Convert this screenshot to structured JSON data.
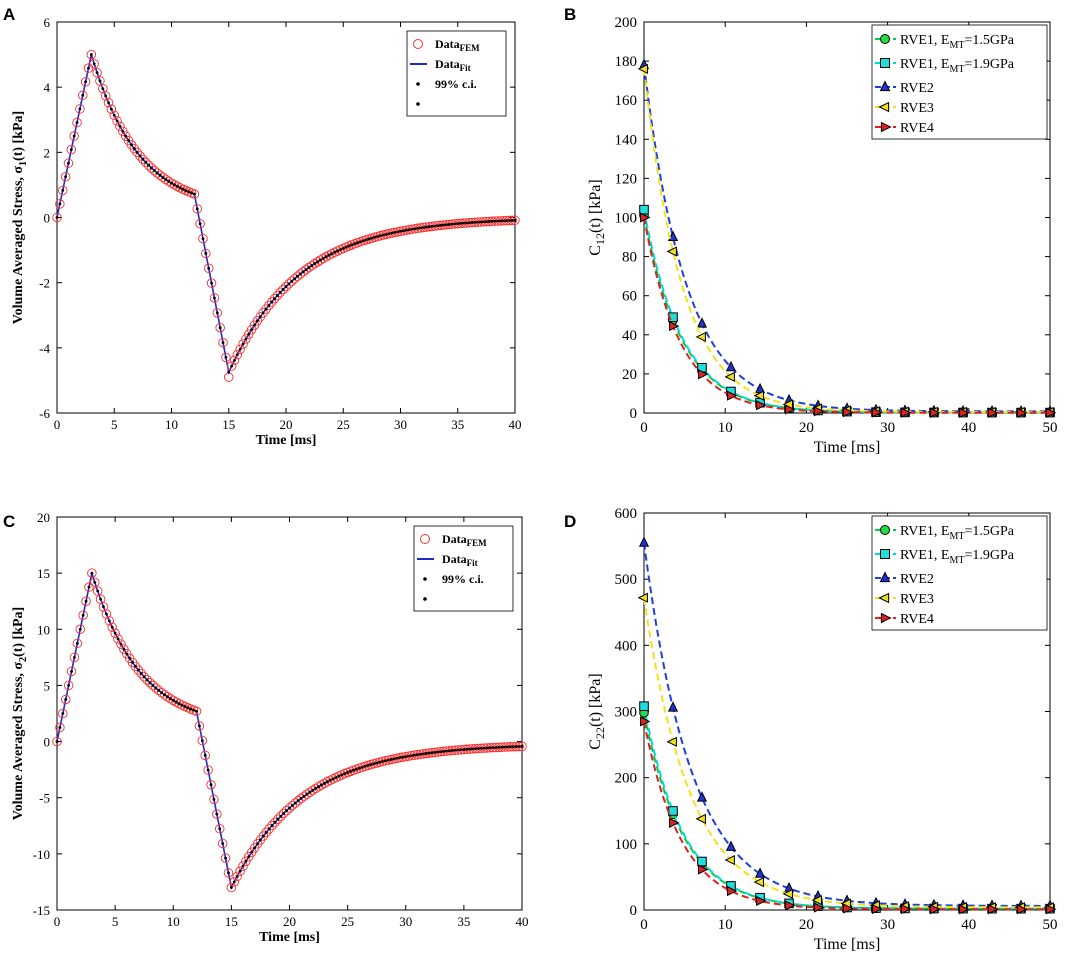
{
  "chart_data": [
    {
      "panel": "A",
      "type": "scatter",
      "xlabel": "Time [ms]",
      "ylabel": "Volume Averaged Stress, σ1(t) [kPa]",
      "ylabel_main": "Volume Averaged Stress, σ",
      "ylabel_sub": "1",
      "ylabel_tail": "(t) [kPa]",
      "xlim": [
        0,
        40
      ],
      "ylim": [
        -6,
        6
      ],
      "xticks": [
        0,
        5,
        10,
        15,
        20,
        25,
        30,
        35,
        40
      ],
      "yticks": [
        -6,
        -4,
        -2,
        0,
        2,
        4,
        6
      ],
      "piecewise": {
        "t_peak": 3,
        "peak": 5.0,
        "t_unload": 12,
        "unload_value": 0.72,
        "t_min": 15,
        "min": -4.75,
        "fem_min": -4.9,
        "t_end": 40,
        "end_value": 0.0
      },
      "legend": [
        {
          "main": "Data",
          "sub": "FEM",
          "marker": "circle-red"
        },
        {
          "main": "Data",
          "sub": "Fit",
          "marker": "line-blue"
        },
        {
          "main": "99% c.i.",
          "sub": "",
          "marker": "dot-black"
        },
        {
          "main": "",
          "sub": "",
          "marker": "dot-black"
        }
      ]
    },
    {
      "panel": "B",
      "type": "line",
      "xlabel": "Time [ms]",
      "ylabel": "C12(t) [kPa]",
      "ylabel_main": "C",
      "ylabel_sub": "12",
      "ylabel_tail": "(t) [kPa]",
      "xlim": [
        0,
        50
      ],
      "ylim": [
        0,
        200
      ],
      "xticks": [
        0,
        10,
        20,
        30,
        40,
        50
      ],
      "yticks": [
        0,
        20,
        40,
        60,
        80,
        100,
        120,
        140,
        160,
        180,
        200
      ],
      "x": [
        0,
        3.57,
        7.14,
        10.71,
        14.29,
        17.86,
        21.43,
        25,
        28.57,
        32.14,
        35.71,
        39.29,
        42.86,
        46.43,
        50
      ],
      "series": [
        {
          "name": "RVE1, EMT=1.5GPa",
          "label_main": "RVE1, E",
          "label_sub": "MT",
          "label_tail": "=1.5GPa",
          "color": "#00cc44",
          "fill": "#22dd44",
          "marker": "circle",
          "start": 101,
          "tau": 4.72,
          "floor": 0.2
        },
        {
          "name": "RVE1, EMT=1.9GPa",
          "label_main": "RVE1, E",
          "label_sub": "MT",
          "label_tail": "=1.9GPa",
          "color": "#00d8d8",
          "fill": "#22dddd",
          "marker": "square",
          "start": 104,
          "tau": 4.73,
          "floor": 0.2
        },
        {
          "name": "RVE2",
          "label_main": "RVE2",
          "label_sub": "",
          "label_tail": "",
          "color": "#1f3fdd",
          "fill": "#2233cc",
          "marker": "triangle-up",
          "start": 178,
          "tau": 5.2,
          "floor": 0.8
        },
        {
          "name": "RVE3",
          "label_main": "RVE3",
          "label_sub": "",
          "label_tail": "",
          "color": "#f2e21a",
          "fill": "#f0e020",
          "marker": "triangle-left",
          "start": 176,
          "tau": 4.7,
          "floor": 0.5
        },
        {
          "name": "RVE4",
          "label_main": "RVE4",
          "label_sub": "",
          "label_tail": "",
          "color": "#dd2222",
          "fill": "#dd2222",
          "marker": "triangle-right",
          "start": 100,
          "tau": 4.4,
          "floor": 0.1
        }
      ]
    },
    {
      "panel": "C",
      "type": "scatter",
      "xlabel": "Time [ms]",
      "ylabel": "Volume Averaged Stress, σ2(t) [kPa]",
      "ylabel_main": "Volume Averaged Stress, σ",
      "ylabel_sub": "2",
      "ylabel_tail": "(t) [kPa]",
      "xlim": [
        0,
        40
      ],
      "ylim": [
        -15,
        20
      ],
      "xticks": [
        0,
        5,
        10,
        15,
        20,
        25,
        30,
        35,
        40
      ],
      "yticks": [
        -15,
        -10,
        -5,
        0,
        5,
        10,
        15,
        20
      ],
      "piecewise": {
        "t_peak": 3,
        "peak": 15.0,
        "t_unload": 12,
        "unload_value": 2.7,
        "t_min": 15,
        "min": -13.0,
        "fem_min": -13.0,
        "t_end": 40,
        "end_value": -0.2
      },
      "legend": [
        {
          "main": "Data",
          "sub": "FEM",
          "marker": "circle-red"
        },
        {
          "main": "Data",
          "sub": "Fit",
          "marker": "line-blue"
        },
        {
          "main": "99% c.i.",
          "sub": "",
          "marker": "dot-black"
        },
        {
          "main": "",
          "sub": "",
          "marker": "dot-black"
        }
      ]
    },
    {
      "panel": "D",
      "type": "line",
      "xlabel": "Time [ms]",
      "ylabel": "C22(t) [kPa]",
      "ylabel_main": "C",
      "ylabel_sub": "22",
      "ylabel_tail": "(t) [kPa]",
      "xlim": [
        0,
        50
      ],
      "ylim": [
        0,
        600
      ],
      "xticks": [
        0,
        10,
        20,
        30,
        40,
        50
      ],
      "yticks": [
        0,
        100,
        200,
        300,
        400,
        500,
        600
      ],
      "x": [
        0,
        3.57,
        7.14,
        10.71,
        14.29,
        17.86,
        21.43,
        25,
        28.57,
        32.14,
        35.71,
        39.29,
        42.86,
        46.43,
        50
      ],
      "series": [
        {
          "name": "RVE1, EMT=1.5GPa",
          "label_main": "RVE1, E",
          "label_sub": "MT",
          "label_tail": "=1.5GPa",
          "color": "#00cc44",
          "fill": "#22dd44",
          "marker": "circle",
          "start": 298,
          "tau": 4.9,
          "floor": 2
        },
        {
          "name": "RVE1, EMT=1.9GPa",
          "label_main": "RVE1, E",
          "label_sub": "MT",
          "label_tail": "=1.9GPa",
          "color": "#00d8d8",
          "fill": "#22dddd",
          "marker": "square",
          "start": 308,
          "tau": 4.9,
          "floor": 2
        },
        {
          "name": "RVE2",
          "label_main": "RVE2",
          "label_sub": "",
          "label_tail": "",
          "color": "#1f3fdd",
          "fill": "#2233cc",
          "marker": "triangle-up",
          "start": 555,
          "tau": 5.9,
          "floor": 6
        },
        {
          "name": "RVE3",
          "label_main": "RVE3",
          "label_sub": "",
          "label_tail": "",
          "color": "#f2e21a",
          "fill": "#f0e020",
          "marker": "triangle-left",
          "start": 472,
          "tau": 5.7,
          "floor": 4
        },
        {
          "name": "RVE4",
          "label_main": "RVE4",
          "label_sub": "",
          "label_tail": "",
          "color": "#dd2222",
          "fill": "#dd2222",
          "marker": "triangle-right",
          "start": 285,
          "tau": 4.6,
          "floor": 1
        }
      ]
    }
  ]
}
